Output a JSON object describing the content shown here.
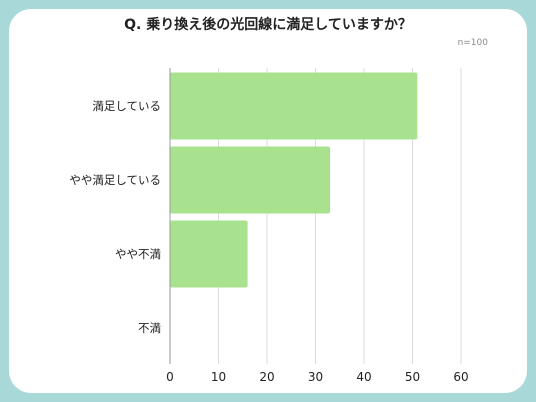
{
  "chart_data": {
    "type": "bar",
    "orientation": "horizontal",
    "title": "Q. 乗り換え後の光回線に満足していますか？",
    "note": "n=100",
    "categories": [
      "満足している",
      "やや満足している",
      "やや不満",
      "不満"
    ],
    "values": [
      51,
      33,
      16,
      0
    ],
    "xticks": [
      0,
      10,
      20,
      30,
      40,
      50,
      60
    ],
    "xlim": [
      0,
      60
    ],
    "grid": true,
    "bar_color": "#a8e28e",
    "xlabel": "",
    "ylabel": ""
  },
  "colors": {
    "background": "#a9d8d8",
    "card": "#ffffff",
    "grid": "#dddddd",
    "axis": "#999999"
  }
}
